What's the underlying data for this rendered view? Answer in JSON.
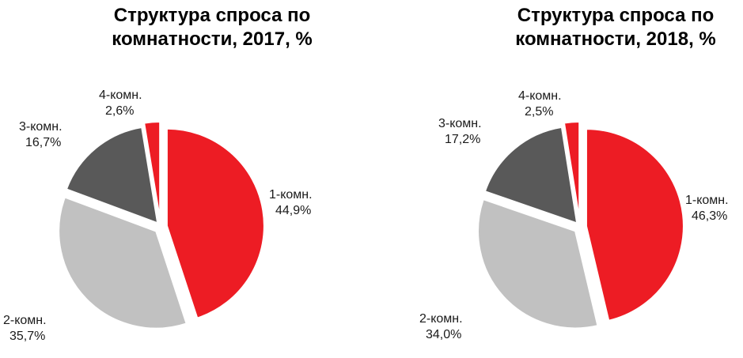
{
  "colors": {
    "room1": "#ed1c24",
    "room2": "#c1c1c1",
    "room3": "#595959",
    "room4": "#ed1c24",
    "separator": "#ffffff"
  },
  "chart_data": [
    {
      "type": "pie",
      "title": [
        "Структура  спроса по",
        "комнатности, 2017, %"
      ],
      "categories": [
        "1-комн.",
        "2-комн.",
        "3-комн.",
        "4-комн."
      ],
      "values": [
        44.9,
        35.7,
        16.7,
        2.6
      ],
      "value_labels": [
        "44,9%",
        "35,7%",
        "16,7%",
        "2,6%"
      ],
      "exploded": true,
      "legend": "none"
    },
    {
      "type": "pie",
      "title": [
        "Структура  спроса по",
        "комнатности, 2018, %"
      ],
      "categories": [
        "1-комн.",
        "2-комн.",
        "3-комн.",
        "4-комн."
      ],
      "values": [
        46.3,
        34.0,
        17.2,
        2.5
      ],
      "value_labels": [
        "46,3%",
        "34,0%",
        "17,2%",
        "2,5%"
      ],
      "exploded": true,
      "legend": "none"
    }
  ]
}
